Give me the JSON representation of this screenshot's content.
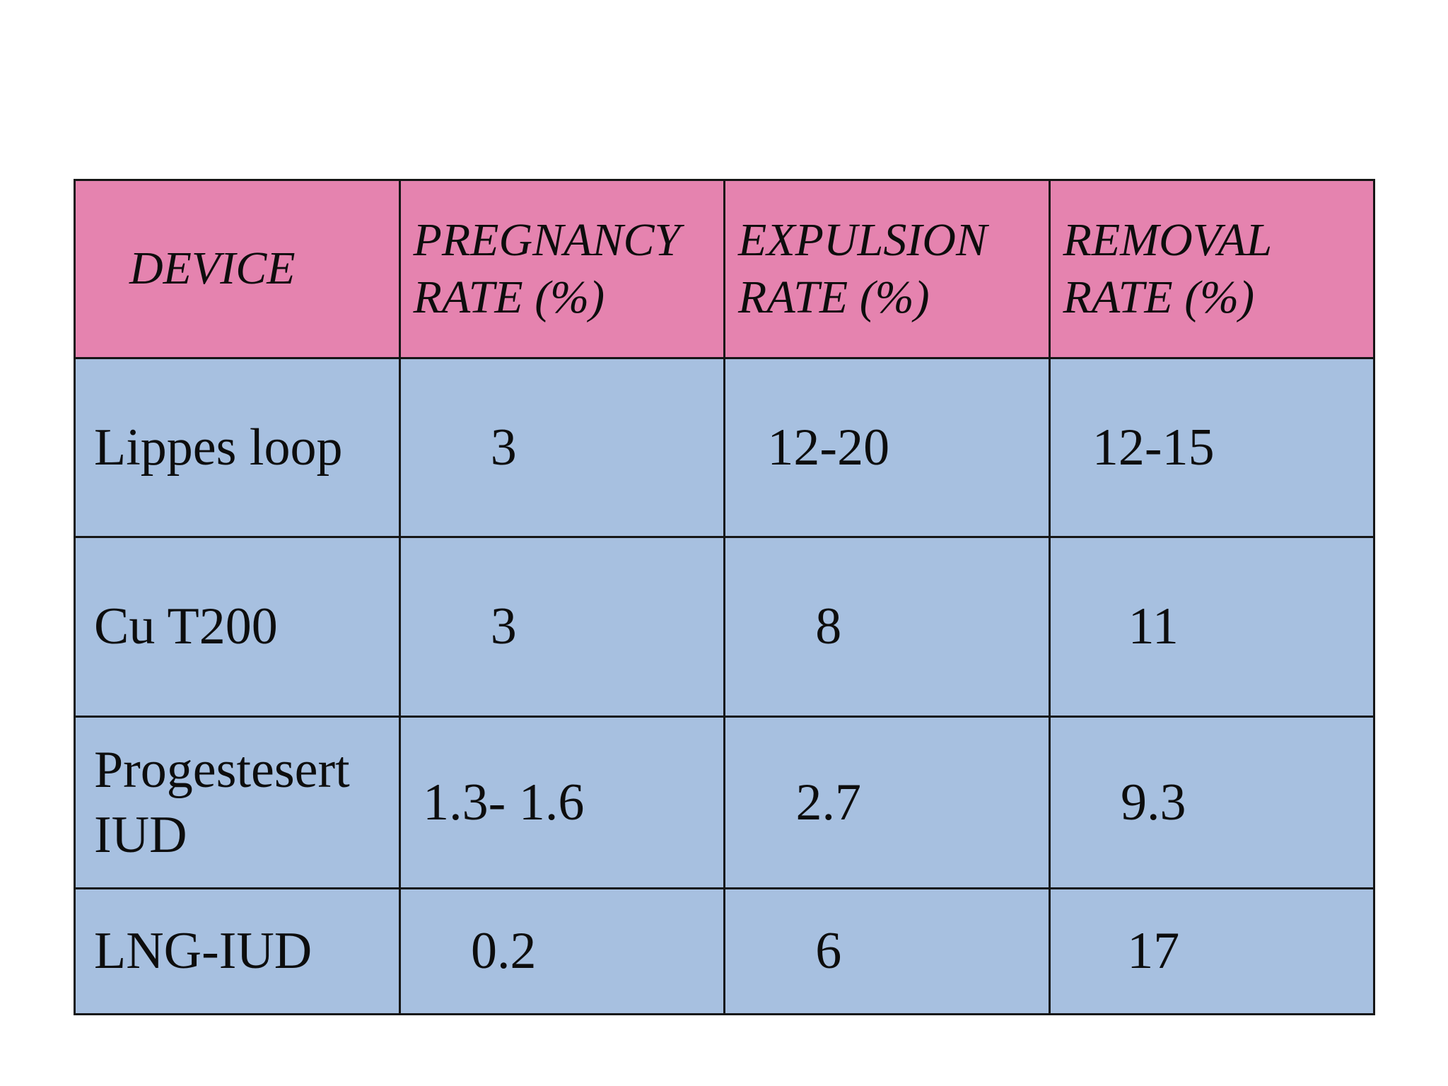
{
  "page": {
    "background": "#ffffff"
  },
  "table": {
    "colors": {
      "header-bg": "#e583af",
      "body-bg": "#a7c0e0",
      "border": "#161616",
      "text": "#0d0d0d",
      "page-bg": "#ffffff"
    },
    "columns": [
      "DEVICE",
      "PREGNANCY RATE (%)",
      "EXPULSION RATE (%)",
      "REMOVAL RATE (%)"
    ],
    "rows": [
      {
        "device": "Lippes loop",
        "pregnancy_rate": "3",
        "expulsion_rate": "12-20",
        "removal_rate": "12-15"
      },
      {
        "device": "Cu T200",
        "pregnancy_rate": "3",
        "expulsion_rate": "8",
        "removal_rate": "11"
      },
      {
        "device": "Progestesert IUD",
        "pregnancy_rate": "1.3- 1.6",
        "expulsion_rate": "2.7",
        "removal_rate": "9.3"
      },
      {
        "device": "LNG-IUD",
        "pregnancy_rate": "0.2",
        "expulsion_rate": "6",
        "removal_rate": "17"
      }
    ]
  },
  "chart_data": {
    "type": "table",
    "title": "",
    "columns": [
      "DEVICE",
      "PREGNANCY RATE (%)",
      "EXPULSION RATE (%)",
      "REMOVAL RATE (%)"
    ],
    "rows": [
      [
        "Lippes loop",
        "3",
        "12-20",
        "12-15"
      ],
      [
        "Cu T200",
        "3",
        "8",
        "11"
      ],
      [
        "Progestesert IUD",
        "1.3- 1.6",
        "2.7",
        "9.3"
      ],
      [
        "LNG-IUD",
        "0.2",
        "6",
        "17"
      ]
    ]
  }
}
